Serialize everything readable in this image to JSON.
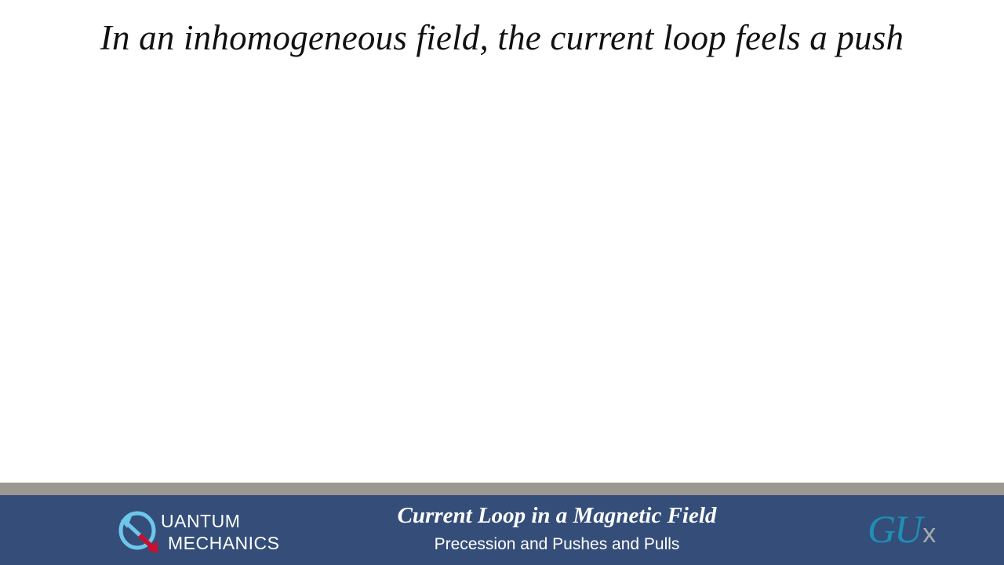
{
  "slide": {
    "title": "In an inhomogeneous field, the current loop feels a push"
  },
  "footer": {
    "logo": {
      "line1": "UANTUM",
      "line2": "MECHANICS",
      "icon": "quantum-q-arrow-icon"
    },
    "title": "Current Loop in a Magnetic Field",
    "subtitle": "Precession and Pushes and Pulls",
    "brand": {
      "gu": "GU",
      "x": "x"
    }
  },
  "colors": {
    "footer_bg": "#344e79",
    "strip": "#9a9890",
    "logo_blue": "#6ec6ea",
    "logo_red": "#c8102e",
    "gux_blue": "#1f8fb6",
    "gux_gray": "#a7a9ac"
  }
}
